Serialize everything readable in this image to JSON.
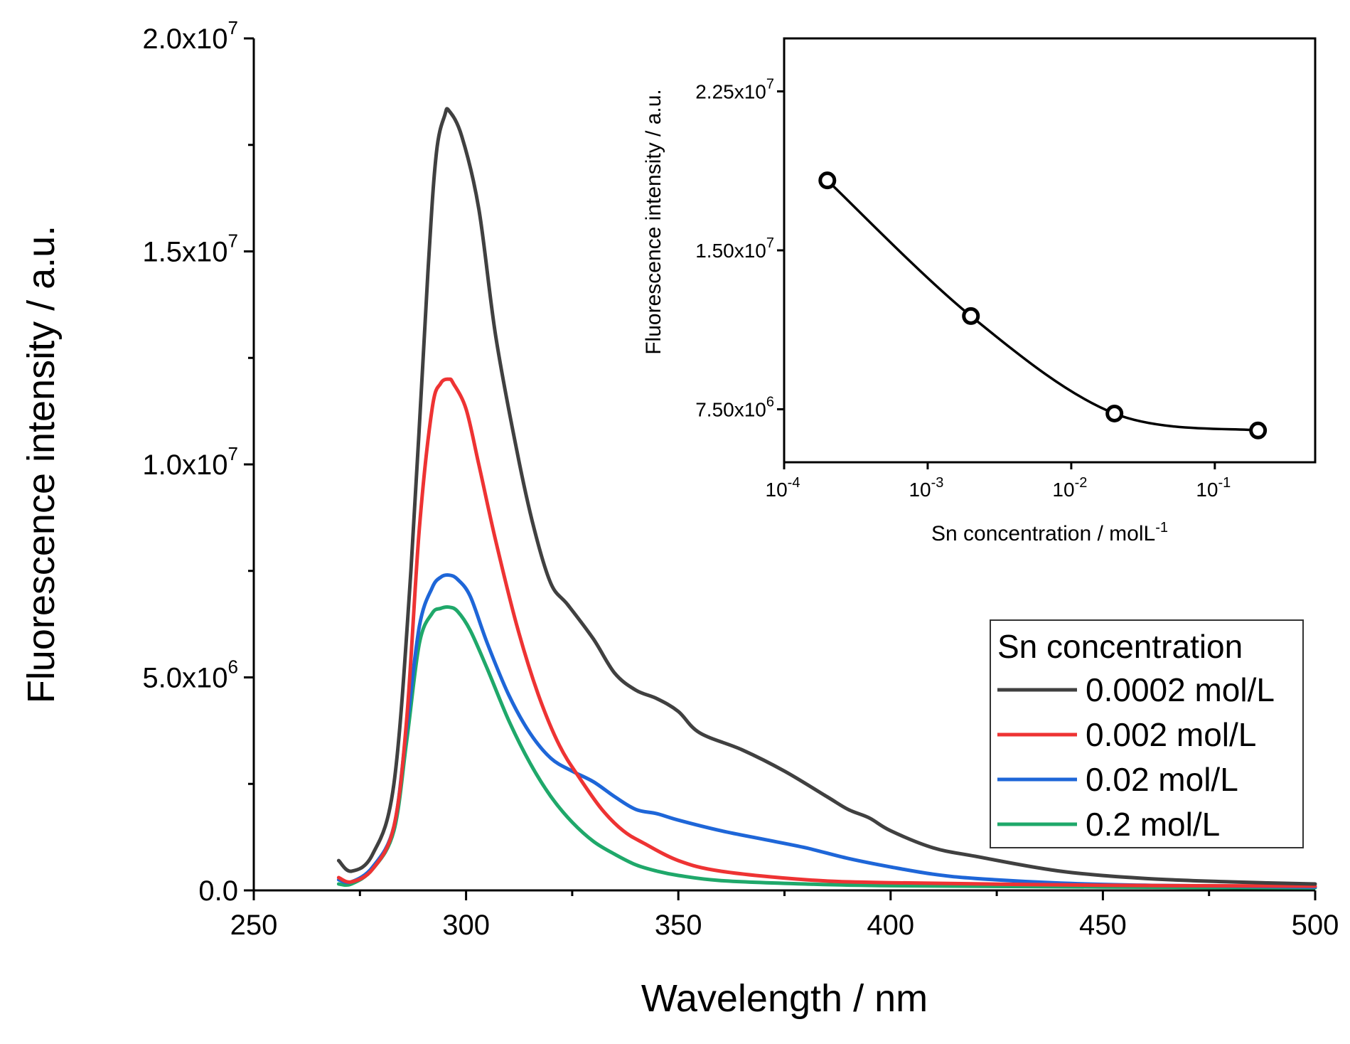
{
  "chart_data": [
    {
      "id": "main",
      "type": "line",
      "title": "",
      "xlabel": "Wavelength / nm",
      "ylabel": "Fluorescence intensity / a.u.",
      "xlim": [
        250,
        500
      ],
      "ylim": [
        0,
        20000000
      ],
      "xticks": [
        250,
        300,
        350,
        400,
        450,
        500
      ],
      "xtick_labels": [
        "250",
        "300",
        "350",
        "400",
        "450",
        "500"
      ],
      "yticks": [
        0,
        5000000,
        10000000,
        15000000,
        20000000
      ],
      "ytick_labels": [
        {
          "mantissa": "0.0",
          "exp": ""
        },
        {
          "mantissa": "5.0x10",
          "exp": "6"
        },
        {
          "mantissa": "1.0x10",
          "exp": "7"
        },
        {
          "mantissa": "1.5x10",
          "exp": "7"
        },
        {
          "mantissa": "2.0x10",
          "exp": "7"
        }
      ],
      "legend": {
        "title": "Sn concentration",
        "position": "right"
      },
      "series": [
        {
          "name": "0.0002 mol/L",
          "color": "#404040",
          "x": [
            270,
            273,
            278,
            283,
            287,
            291,
            293,
            295,
            296,
            299,
            303,
            307,
            312,
            316,
            320,
            324,
            330,
            335,
            340,
            345,
            350,
            355,
            365,
            375,
            385,
            390,
            395,
            400,
            410,
            420,
            440,
            460,
            480,
            500
          ],
          "y": [
            700000,
            450000,
            850000,
            2500000,
            7500000,
            14500000,
            17300000,
            18200000,
            18300000,
            17700000,
            16000000,
            13000000,
            10300000,
            8500000,
            7200000,
            6700000,
            5900000,
            5100000,
            4700000,
            4500000,
            4200000,
            3700000,
            3300000,
            2800000,
            2200000,
            1900000,
            1700000,
            1400000,
            1000000,
            800000,
            450000,
            280000,
            200000,
            150000
          ]
        },
        {
          "name": "0.002 mol/L",
          "color": "#ee3333",
          "x": [
            270,
            273,
            278,
            283,
            286,
            289,
            292,
            294,
            296,
            297,
            300,
            303,
            307,
            312,
            317,
            322,
            327,
            332,
            337,
            342,
            350,
            360,
            380,
            400,
            450,
            500
          ],
          "y": [
            300000,
            200000,
            500000,
            1500000,
            4000000,
            8500000,
            11300000,
            11900000,
            12000000,
            11900000,
            11300000,
            10000000,
            8200000,
            6200000,
            4600000,
            3400000,
            2600000,
            1900000,
            1400000,
            1100000,
            700000,
            450000,
            250000,
            180000,
            120000,
            100000
          ]
        },
        {
          "name": "0.02 mol/L",
          "color": "#1e66d8",
          "x": [
            270,
            273,
            278,
            283,
            286,
            289,
            292,
            294,
            296,
            298,
            301,
            305,
            310,
            315,
            320,
            325,
            330,
            335,
            340,
            345,
            350,
            360,
            370,
            380,
            390,
            400,
            410,
            420,
            440,
            460,
            480,
            500
          ],
          "y": [
            250000,
            200000,
            550000,
            1500000,
            3800000,
            6200000,
            7100000,
            7350000,
            7400000,
            7300000,
            6900000,
            5800000,
            4600000,
            3700000,
            3100000,
            2800000,
            2550000,
            2200000,
            1900000,
            1800000,
            1650000,
            1400000,
            1200000,
            1000000,
            750000,
            550000,
            380000,
            280000,
            170000,
            120000,
            100000,
            80000
          ]
        },
        {
          "name": "0.2 mol/L",
          "color": "#1fa86a",
          "x": [
            270,
            273,
            278,
            283,
            286,
            289,
            292,
            294,
            296,
            298,
            301,
            305,
            310,
            315,
            320,
            325,
            330,
            335,
            340,
            345,
            350,
            360,
            380,
            400,
            450,
            500
          ],
          "y": [
            150000,
            150000,
            500000,
            1400000,
            3500000,
            5800000,
            6500000,
            6620000,
            6650000,
            6550000,
            6100000,
            5200000,
            4000000,
            3000000,
            2200000,
            1600000,
            1150000,
            850000,
            600000,
            450000,
            350000,
            230000,
            150000,
            110000,
            80000,
            60000
          ]
        }
      ]
    },
    {
      "id": "inset",
      "type": "scatter",
      "title": "",
      "xlabel": "Sn concentration / molL",
      "xlabel_sup": "-1",
      "ylabel": "Fluorescence intensity / a.u.",
      "xscale": "log",
      "xlim": [
        0.0001,
        0.5
      ],
      "ylim": [
        5000000,
        25000000
      ],
      "xticks": [
        0.0001,
        0.001,
        0.01,
        0.1
      ],
      "xtick_labels": [
        {
          "base": "10",
          "exp": "-4"
        },
        {
          "base": "10",
          "exp": "-3"
        },
        {
          "base": "10",
          "exp": "-2"
        },
        {
          "base": "10",
          "exp": "-1"
        }
      ],
      "yticks": [
        7500000,
        15000000,
        22500000
      ],
      "ytick_labels": [
        {
          "mantissa": "7.50x10",
          "exp": "6"
        },
        {
          "mantissa": "1.50x10",
          "exp": "7"
        },
        {
          "mantissa": "2.25x10",
          "exp": "7"
        }
      ],
      "x": [
        0.0002,
        0.002,
        0.02,
        0.2
      ],
      "y": [
        18300000,
        11900000,
        7300000,
        6500000
      ]
    }
  ]
}
